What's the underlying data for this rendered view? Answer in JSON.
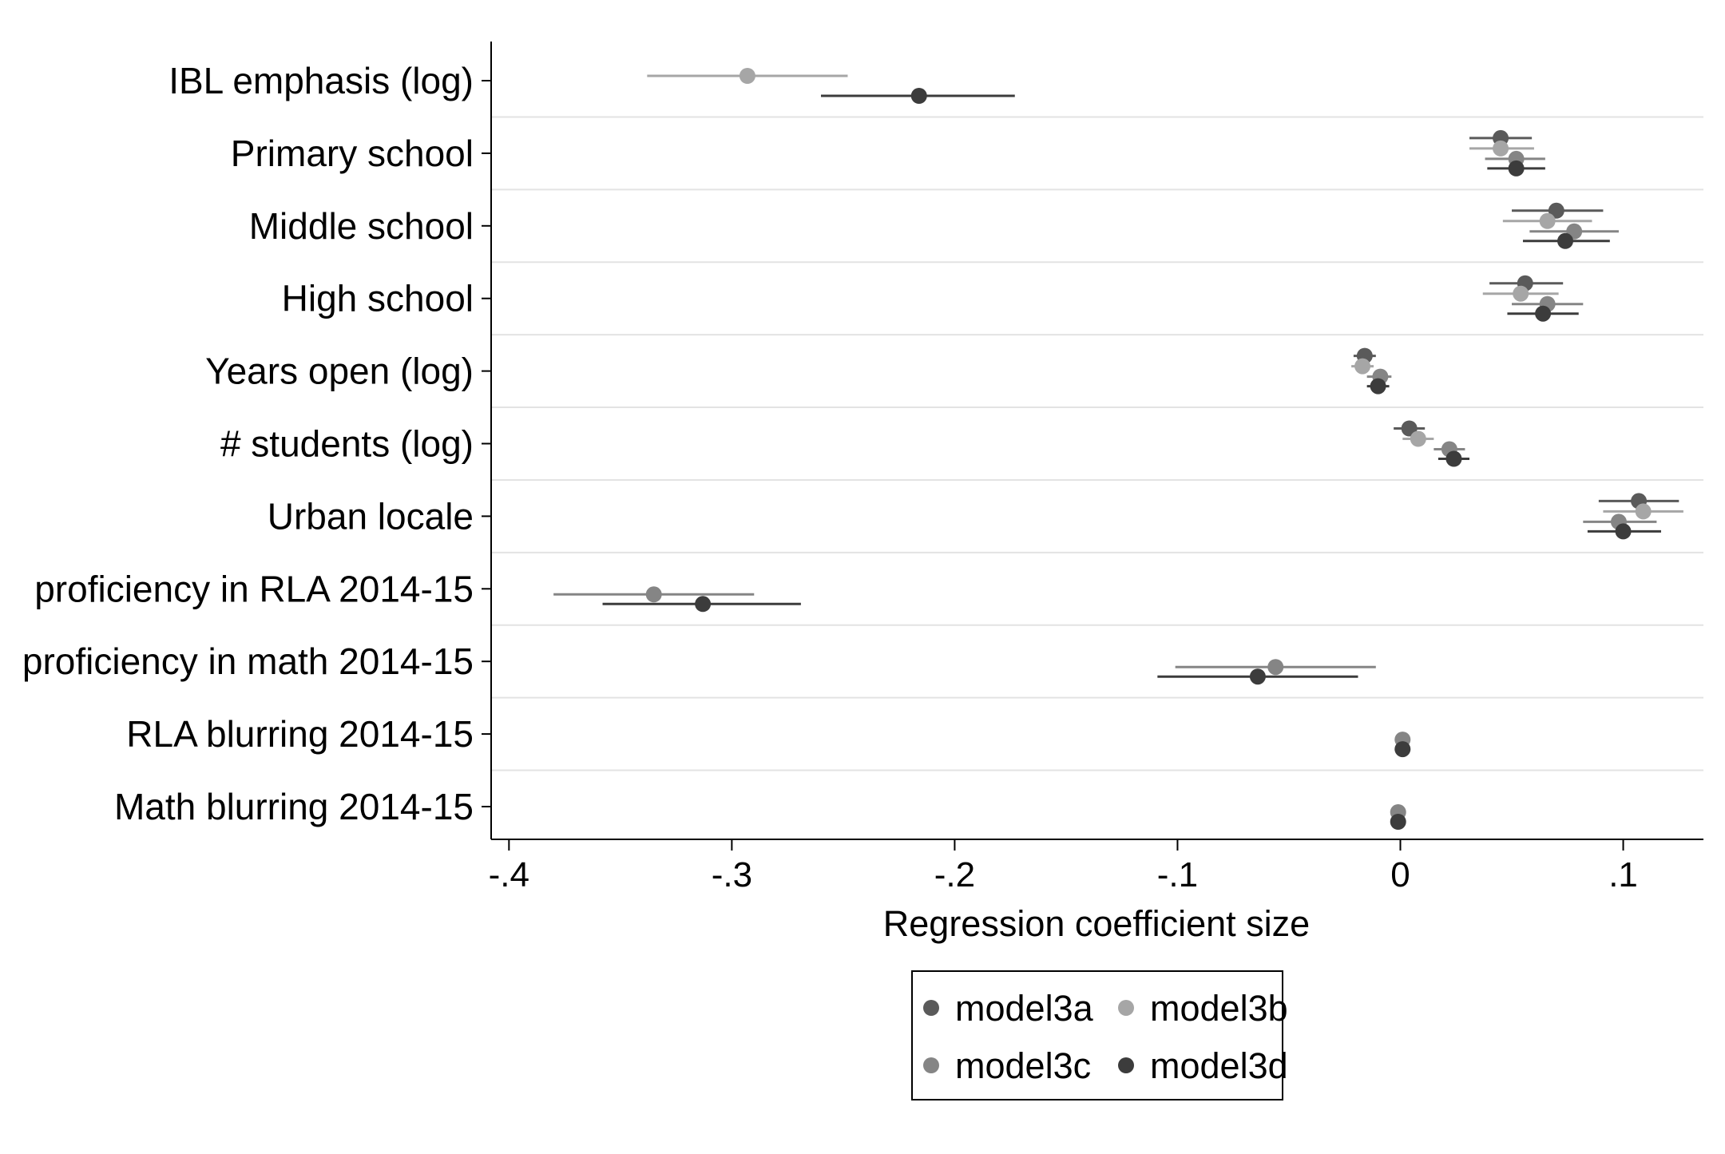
{
  "chart_data": {
    "type": "scatter",
    "subtype": "coefficient-plot",
    "orientation": "horizontal",
    "title": "",
    "xlabel": "Regression coefficient size",
    "ylabel": "",
    "xlim": [
      -0.408,
      0.136
    ],
    "x_ticks": [
      {
        "value": -0.4,
        "label": "-.4"
      },
      {
        "value": -0.3,
        "label": "-.3"
      },
      {
        "value": -0.2,
        "label": "-.2"
      },
      {
        "value": -0.1,
        "label": "-.1"
      },
      {
        "value": 0,
        "label": "0"
      },
      {
        "value": 0.1,
        "label": ".1"
      }
    ],
    "categories": [
      "IBL emphasis (log)",
      "Primary school",
      "Middle school",
      "High school",
      "Years open (log)",
      "# students (log)",
      "Urban locale",
      "proficiency in RLA 2014-15",
      "proficiency in math 2014-15",
      "RLA blurring 2014-15",
      "Math blurring 2014-15"
    ],
    "grid": "horizontal separators between categories",
    "legend": {
      "position": "bottom",
      "columns": 2
    },
    "series": [
      {
        "name": "model3a",
        "color": "#5a5a5a",
        "points": [
          null,
          {
            "coef": 0.045,
            "lo": 0.031,
            "hi": 0.059
          },
          {
            "coef": 0.07,
            "lo": 0.05,
            "hi": 0.091
          },
          {
            "coef": 0.056,
            "lo": 0.04,
            "hi": 0.073
          },
          {
            "coef": -0.016,
            "lo": -0.021,
            "hi": -0.011
          },
          {
            "coef": 0.004,
            "lo": -0.003,
            "hi": 0.011
          },
          {
            "coef": 0.107,
            "lo": 0.089,
            "hi": 0.125
          },
          null,
          null,
          null,
          null
        ]
      },
      {
        "name": "model3b",
        "color": "#a6a6a6",
        "points": [
          {
            "coef": -0.293,
            "lo": -0.338,
            "hi": -0.248
          },
          {
            "coef": 0.045,
            "lo": 0.031,
            "hi": 0.06
          },
          {
            "coef": 0.066,
            "lo": 0.046,
            "hi": 0.086
          },
          {
            "coef": 0.054,
            "lo": 0.037,
            "hi": 0.071
          },
          {
            "coef": -0.017,
            "lo": -0.022,
            "hi": -0.012
          },
          {
            "coef": 0.008,
            "lo": 0.001,
            "hi": 0.015
          },
          {
            "coef": 0.109,
            "lo": 0.091,
            "hi": 0.127
          },
          null,
          null,
          null,
          null
        ]
      },
      {
        "name": "model3c",
        "color": "#858585",
        "points": [
          null,
          {
            "coef": 0.052,
            "lo": 0.038,
            "hi": 0.065
          },
          {
            "coef": 0.078,
            "lo": 0.058,
            "hi": 0.098
          },
          {
            "coef": 0.066,
            "lo": 0.05,
            "hi": 0.082
          },
          {
            "coef": -0.009,
            "lo": -0.015,
            "hi": -0.004
          },
          {
            "coef": 0.022,
            "lo": 0.015,
            "hi": 0.029
          },
          {
            "coef": 0.098,
            "lo": 0.082,
            "hi": 0.115
          },
          {
            "coef": -0.335,
            "lo": -0.38,
            "hi": -0.29
          },
          {
            "coef": -0.056,
            "lo": -0.101,
            "hi": -0.011
          },
          {
            "coef": 0.001,
            "lo": 0.0,
            "hi": 0.002
          },
          {
            "coef": -0.001,
            "lo": -0.002,
            "hi": 0.0
          }
        ]
      },
      {
        "name": "model3d",
        "color": "#3c3c3c",
        "points": [
          {
            "coef": -0.216,
            "lo": -0.26,
            "hi": -0.173
          },
          {
            "coef": 0.052,
            "lo": 0.039,
            "hi": 0.065
          },
          {
            "coef": 0.074,
            "lo": 0.055,
            "hi": 0.094
          },
          {
            "coef": 0.064,
            "lo": 0.048,
            "hi": 0.08
          },
          {
            "coef": -0.01,
            "lo": -0.015,
            "hi": -0.005
          },
          {
            "coef": 0.024,
            "lo": 0.017,
            "hi": 0.031
          },
          {
            "coef": 0.1,
            "lo": 0.084,
            "hi": 0.117
          },
          {
            "coef": -0.313,
            "lo": -0.358,
            "hi": -0.269
          },
          {
            "coef": -0.064,
            "lo": -0.109,
            "hi": -0.019
          },
          {
            "coef": 0.001,
            "lo": 0.0,
            "hi": 0.002
          },
          {
            "coef": -0.001,
            "lo": -0.002,
            "hi": 0.0
          }
        ]
      }
    ]
  }
}
